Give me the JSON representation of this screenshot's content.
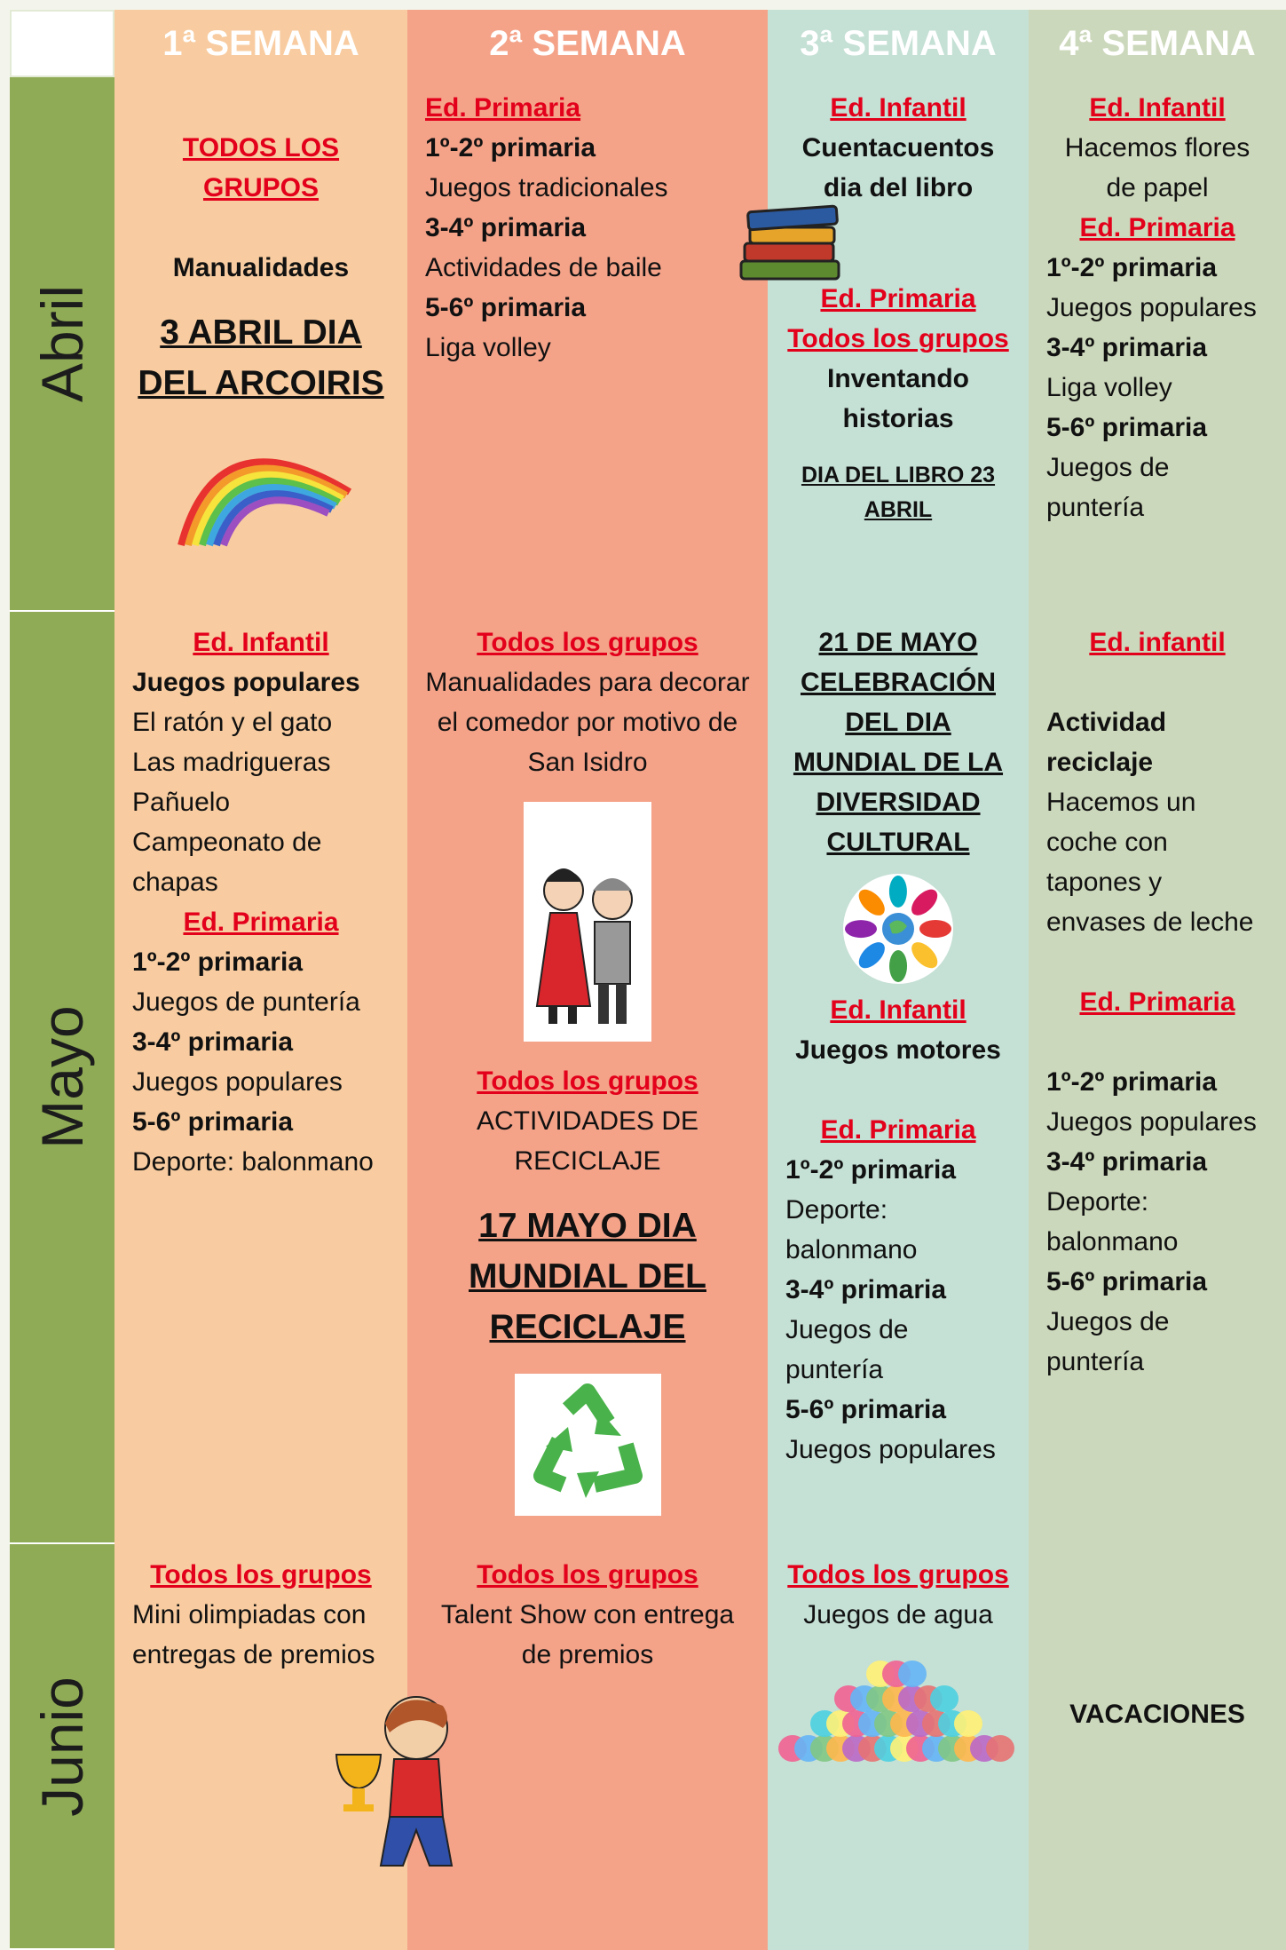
{
  "header": {
    "weeks": [
      "1ª SEMANA",
      "2ª SEMANA",
      "3ª SEMANA",
      "4ª SEMANA"
    ]
  },
  "months": [
    "Abril",
    "Mayo",
    "Junio"
  ],
  "rows": [
    {
      "cells": [
        [
          "TODOS LOS GRUPOS",
          "Manualidades",
          "3 ABRIL DIA DEL ARCOIRIS"
        ],
        [
          "Ed. Primaria",
          "1º-2º primaria",
          "Juegos tradicionales",
          "3-4º primaria",
          "Actividades de baile",
          "5-6º primaria",
          "Liga volley"
        ],
        [
          "Ed. Infantil",
          "Cuentacuentos dia del libro",
          "Ed. Primaria",
          "Todos los grupos",
          "Inventando historias",
          "DIA DEL LIBRO 23 ABRIL"
        ],
        [
          "Ed. Infantil",
          "Hacemos flores de papel",
          "Ed. Primaria",
          "1º-2º primaria",
          "Juegos populares",
          "3-4º primaria",
          "Liga volley",
          "5-6º primaria",
          "Juegos de puntería"
        ]
      ]
    },
    {
      "cells": [
        [
          "Ed. Infantil",
          "Juegos populares",
          "El ratón y el gato",
          "Las madrigueras",
          "Pañuelo",
          "Campeonato de chapas",
          "Ed. Primaria",
          "1º-2º primaria",
          "Juegos de puntería",
          "3-4º primaria",
          "Juegos populares",
          "5-6º primaria",
          "Deporte: balonmano"
        ],
        [
          "Todos los grupos",
          "Manualidades para decorar el comedor por motivo de San Isidro",
          "Todos los grupos",
          "ACTIVIDADES DE RECICLAJE",
          "17 MAYO DIA MUNDIAL DEL RECICLAJE"
        ],
        [
          "21 DE MAYO CELEBRACIÓN DEL DIA MUNDIAL DE LA DIVERSIDAD CULTURAL",
          "Ed. Infantil",
          "Juegos motores",
          "Ed. Primaria",
          "1º-2º primaria",
          "Deporte: balonmano",
          "3-4º primaria",
          "Juegos de puntería",
          "5-6º primaria",
          "Juegos populares"
        ],
        [
          "Ed. infantil",
          "Actividad reciclaje",
          "Hacemos un coche con tapones y envases de leche",
          "Ed. Primaria",
          "1º-2º primaria",
          "Juegos populares",
          "3-4º primaria",
          "Deporte: balonmano",
          "5-6º primaria",
          "Juegos de puntería"
        ]
      ]
    },
    {
      "cells": [
        [
          "Todos los grupos",
          "Mini olimpiadas con entregas de premios"
        ],
        [
          "Todos los grupos",
          "Talent Show con entrega de premios"
        ],
        [
          "Todos los grupos",
          "Juegos de agua"
        ],
        [
          "VACACIONES"
        ]
      ]
    }
  ]
}
